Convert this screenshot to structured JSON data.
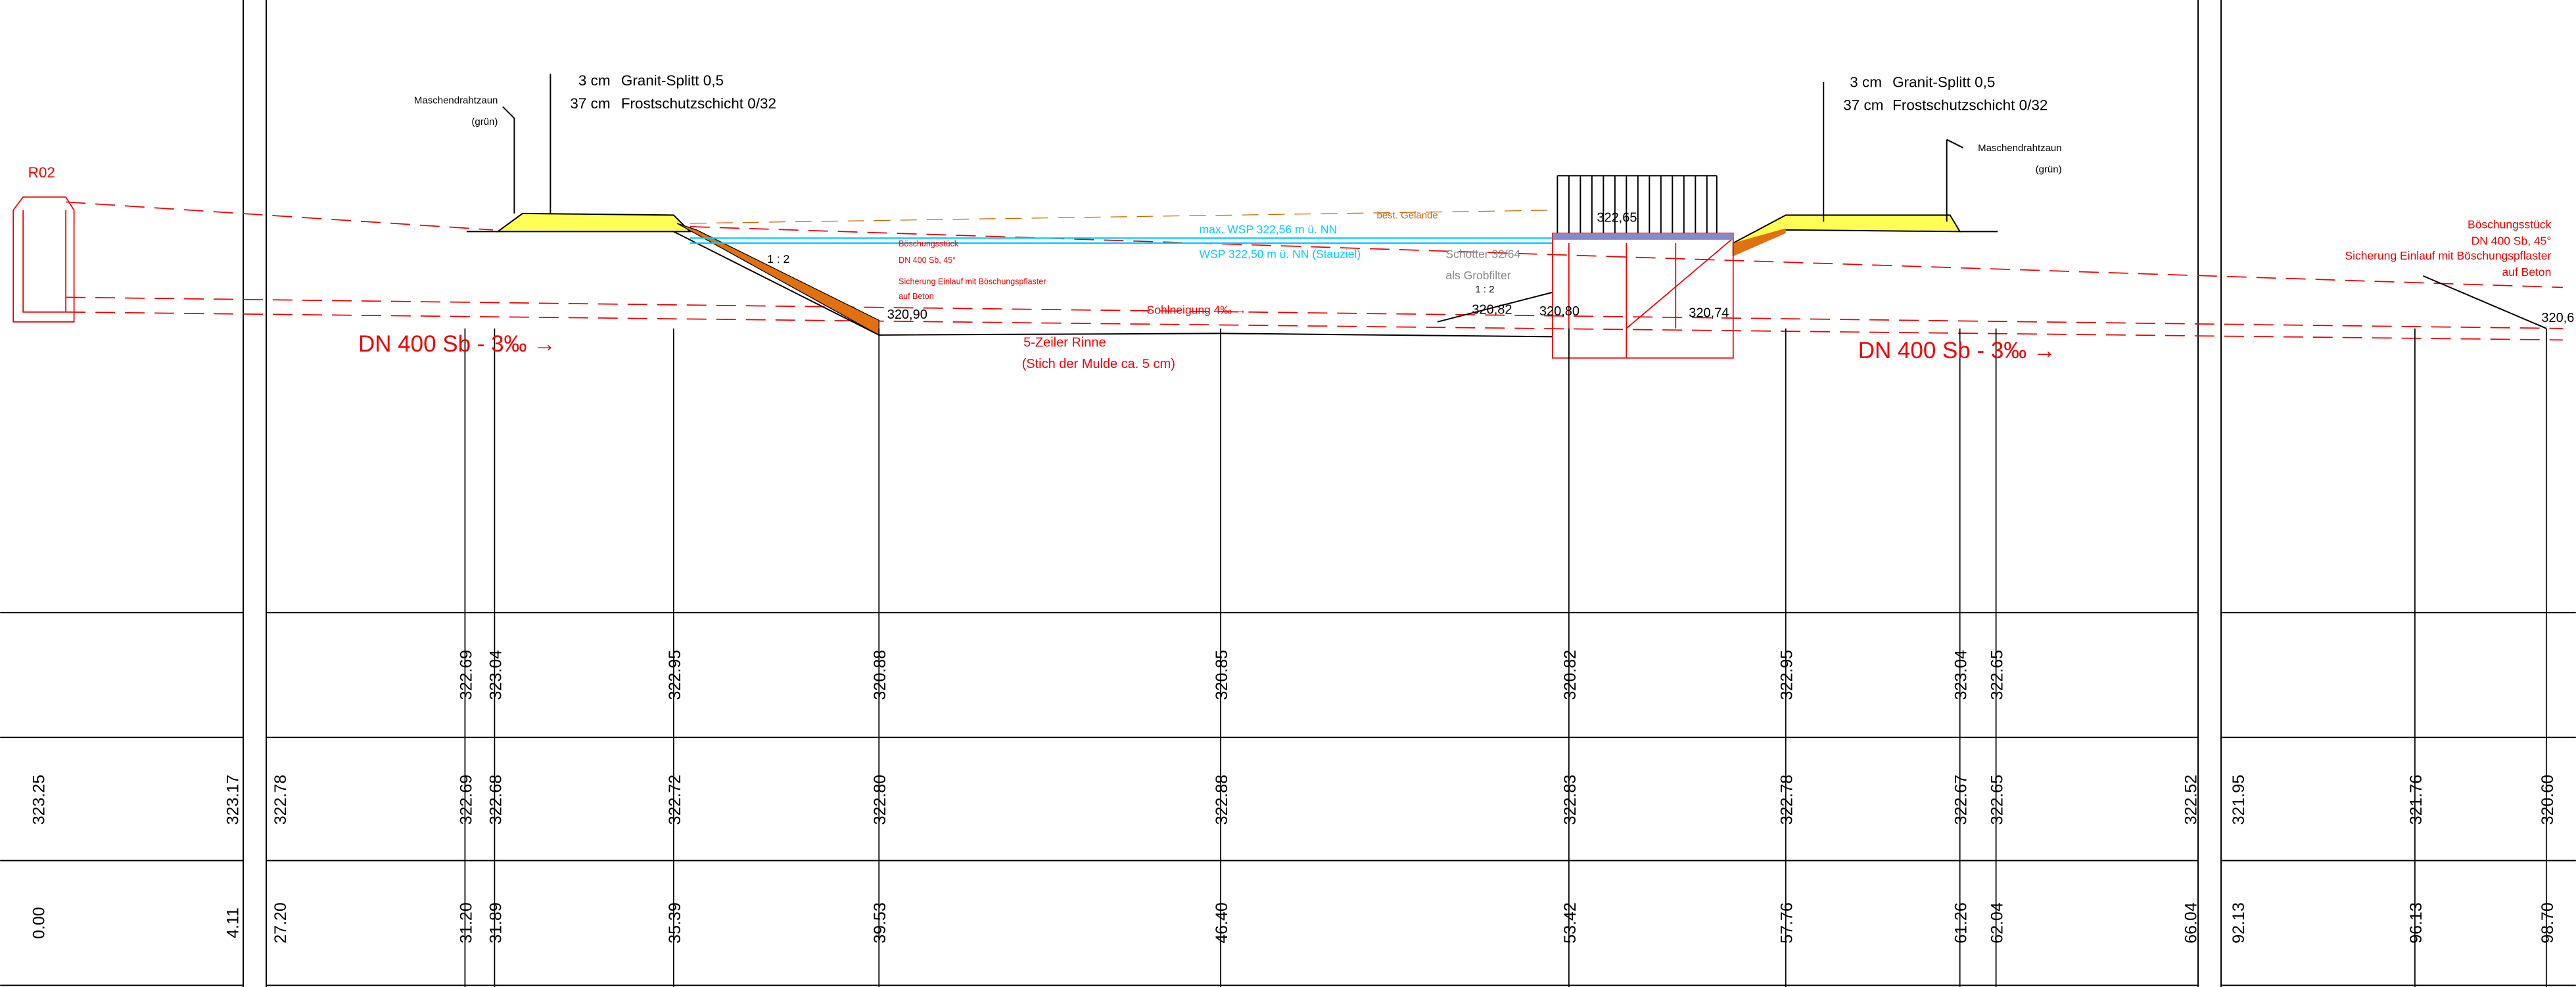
{
  "annotations": [
    "R02",
    "Maschendrahtzaun",
    "(grün)",
    "3 cm",
    "Granit-Splitt 0,5",
    "37 cm",
    "Frostschutzschicht 0/32",
    "DN 400 Sb - 3‰ →",
    "1 : 2",
    "Böschungsstück",
    "DN 400 Sb, 45°",
    "Sicherung Einlauf mit Böschungspflaster",
    "auf Beton",
    "320,90",
    "max. WSP 322,56 m ü. NN",
    "WSP 322,50 m ü. NN (Stauziel)",
    "best. Gelände",
    "Sohlneigung 4‰ →",
    "5-Zeiler Rinne",
    "(Stich der Mulde ca. 5 cm)",
    "Schotter 32/64",
    "als Grobfilter",
    "1 : 2",
    "320,82",
    "320,80",
    "322,65",
    "320,74",
    "3 cm",
    "Granit-Splitt 0,5",
    "37 cm",
    "Frostschutzschicht 0/32",
    "Maschendrahtzaun",
    "(grün)",
    "DN 400 Sb - 3‰ →",
    "Böschungsstück",
    "DN 400 Sb, 45°",
    "Sicherung Einlauf mit Böschungspflaster",
    "auf Beton",
    "320,6"
  ],
  "table": {
    "rows": [
      [
        "322.69",
        "323.04",
        "322.95",
        "320.88",
        "320.85",
        "320.82",
        "322.95",
        "323.04",
        "322.65"
      ],
      [
        "323.25",
        "323.17",
        "322.78",
        "322.69",
        "322.68",
        "322.72",
        "322.80",
        "322.88",
        "322.83",
        "322.78",
        "322.67",
        "322.65",
        "322.52",
        "321.95",
        "321.76",
        "320.60"
      ],
      [
        "0.00",
        "4.11",
        "27.20",
        "31.20",
        "31.89",
        "35.39",
        "39.53",
        "46.40",
        "53.42",
        "57.76",
        "61.26",
        "62.04",
        "66.04",
        "92.13",
        "96.13",
        "98.70"
      ]
    ]
  }
}
